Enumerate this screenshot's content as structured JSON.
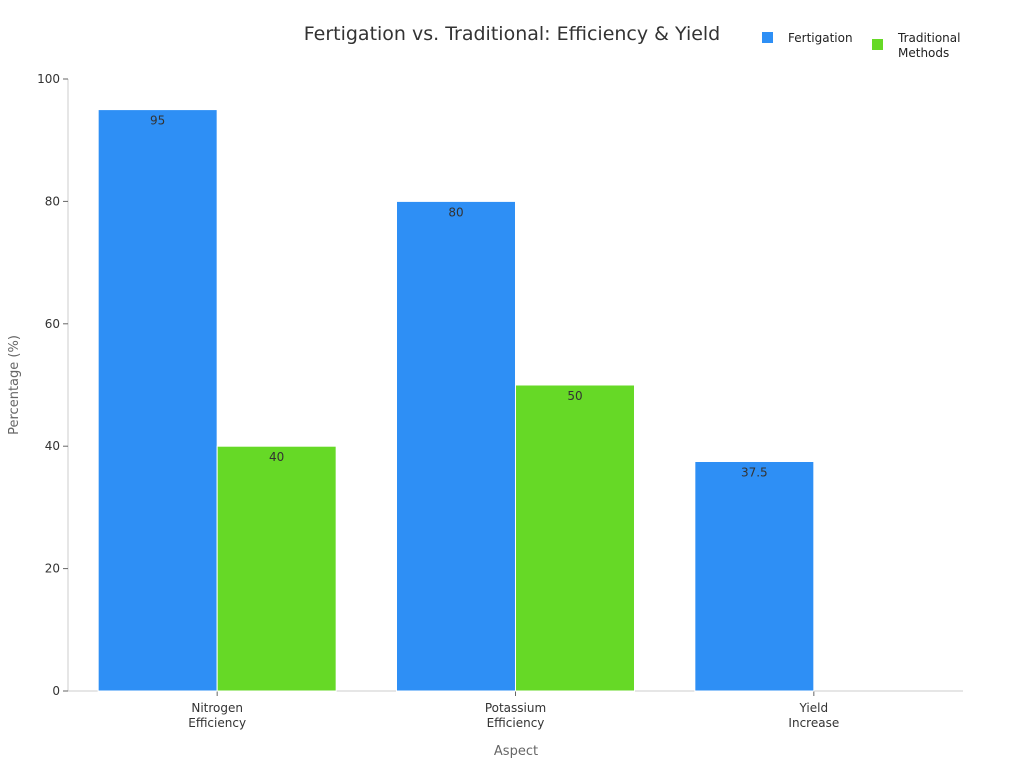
{
  "chart_data": {
    "type": "bar",
    "title": "Fertigation vs. Traditional: Efficiency & Yield",
    "xlabel": "Aspect",
    "ylabel": "Percentage (%)",
    "ylim": [
      0,
      100
    ],
    "yticks": [
      0,
      20,
      40,
      60,
      80,
      100
    ],
    "categories": [
      [
        "Nitrogen",
        "Efficiency"
      ],
      [
        "Potassium",
        "Efficiency"
      ],
      [
        "Yield",
        "Increase"
      ]
    ],
    "series": [
      {
        "name": "Fertigation",
        "color": "#2e8ff5",
        "values": [
          95,
          80,
          37.5
        ],
        "labels": [
          "95",
          "80",
          "37.5"
        ]
      },
      {
        "name": [
          "Traditional",
          "Methods"
        ],
        "color": "#66d926",
        "values": [
          40,
          50,
          null
        ],
        "labels": [
          "40",
          "50",
          ""
        ]
      }
    ],
    "grid": false,
    "legend_position": "top-right"
  }
}
